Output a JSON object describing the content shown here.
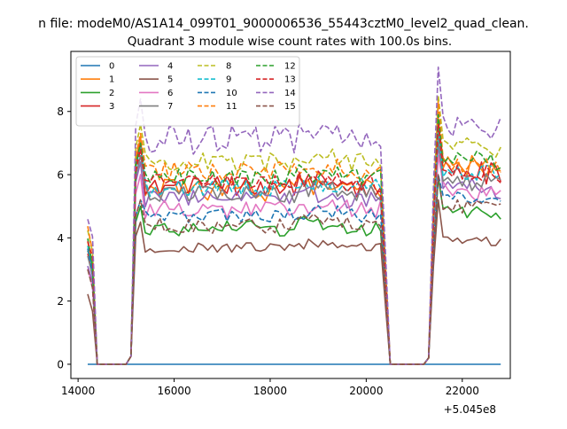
{
  "chart_data": {
    "type": "line",
    "suptitle": "n file: modeM0/AS1A14_099T01_9000006536_55443cztM0_level2_quad_clean.",
    "title": "Quadrant 3 module wise count rates with 100.0s bins.",
    "xlabel": "",
    "ylabel": "",
    "offset_label": "+5.045e8",
    "xlim": [
      13850,
      23000
    ],
    "ylim": [
      -0.45,
      9.9
    ],
    "x_ticks": [
      14000,
      16000,
      18000,
      20000,
      22000
    ],
    "x_tick_labels": [
      "14000",
      "16000",
      "18000",
      "20000",
      "22000"
    ],
    "y_ticks": [
      0,
      2,
      4,
      6,
      8
    ],
    "y_tick_labels": [
      "0",
      "2",
      "4",
      "6",
      "8"
    ],
    "grid": false,
    "legend": {
      "placement": "top-left",
      "ncol": 4
    },
    "segments": [
      {
        "x_start": 14200,
        "x_end": 14300,
        "x_step": 100,
        "zero_after": [
          14400,
          14500,
          14600,
          14700,
          14800,
          14900,
          15000
        ]
      },
      {
        "x_start": 15100,
        "x_end": 20400,
        "x_step": 100,
        "zero_after": [
          20500,
          20600,
          20700,
          20800,
          20900,
          21000,
          21100,
          21200
        ]
      },
      {
        "x_start": 21300,
        "x_end": 22800,
        "x_step": 100,
        "zero_after": []
      }
    ],
    "series": [
      {
        "name": "0",
        "color": "#1f77b4",
        "dash": "solid",
        "profile": "zero",
        "seed": 0
      },
      {
        "name": "1",
        "color": "#ff7f0e",
        "dash": "solid",
        "pre": 3.9,
        "level": 5.5,
        "post": 6.2,
        "peak": 7.2,
        "peak2": 7.8,
        "noise": 0.35,
        "seed": 1
      },
      {
        "name": "2",
        "color": "#2ca02c",
        "dash": "solid",
        "pre": 3.6,
        "level": 4.3,
        "post": 4.7,
        "peak": 5.0,
        "peak2": 5.9,
        "noise": 0.25,
        "seed": 2
      },
      {
        "name": "3",
        "color": "#d62728",
        "dash": "solid",
        "pre": 3.5,
        "level": 5.6,
        "post": 6.0,
        "peak": 7.0,
        "peak2": 7.6,
        "noise": 0.35,
        "seed": 3
      },
      {
        "name": "4",
        "color": "#9467bd",
        "dash": "solid",
        "pre": 3.1,
        "level": 5.2,
        "post": 5.5,
        "peak": 6.4,
        "peak2": 7.0,
        "noise": 0.3,
        "seed": 4
      },
      {
        "name": "5",
        "color": "#8c564b",
        "dash": "solid",
        "pre": 2.2,
        "level": 3.7,
        "post": 3.8,
        "peak": 4.5,
        "peak2": 5.2,
        "noise": 0.18,
        "seed": 5
      },
      {
        "name": "6",
        "color": "#e377c2",
        "dash": "solid",
        "pre": 3.0,
        "level": 4.9,
        "post": 5.3,
        "peak": 6.0,
        "peak2": 6.6,
        "noise": 0.3,
        "seed": 6
      },
      {
        "name": "7",
        "color": "#7f7f7f",
        "dash": "solid",
        "pre": 3.4,
        "level": 5.4,
        "post": 5.7,
        "peak": 6.6,
        "peak2": 7.2,
        "noise": 0.3,
        "seed": 7
      },
      {
        "name": "8",
        "color": "#bcbd22",
        "dash": "dashed",
        "pre": 4.2,
        "level": 6.4,
        "post": 6.8,
        "peak": 7.6,
        "peak2": 8.5,
        "noise": 0.3,
        "seed": 8
      },
      {
        "name": "9",
        "color": "#17becf",
        "dash": "dashed",
        "pre": 3.7,
        "level": 5.6,
        "post": 6.0,
        "peak": 6.9,
        "peak2": 7.5,
        "noise": 0.28,
        "seed": 9
      },
      {
        "name": "10",
        "color": "#1f77b4",
        "dash": "dashed",
        "pre": 3.6,
        "level": 4.7,
        "post": 5.2,
        "peak": 5.2,
        "peak2": 6.0,
        "noise": 0.22,
        "seed": 10
      },
      {
        "name": "11",
        "color": "#ff7f0e",
        "dash": "dashed",
        "pre": 4.3,
        "level": 6.1,
        "post": 6.2,
        "peak": 7.3,
        "peak2": 8.3,
        "noise": 0.3,
        "seed": 11
      },
      {
        "name": "12",
        "color": "#2ca02c",
        "dash": "dashed",
        "pre": 3.9,
        "level": 5.9,
        "post": 6.4,
        "peak": 7.0,
        "peak2": 7.9,
        "noise": 0.28,
        "seed": 12
      },
      {
        "name": "13",
        "color": "#d62728",
        "dash": "dashed",
        "pre": 3.8,
        "level": 5.7,
        "post": 6.0,
        "peak": 6.8,
        "peak2": 7.6,
        "noise": 0.3,
        "seed": 13
      },
      {
        "name": "14",
        "color": "#9467bd",
        "dash": "dashed",
        "pre": 4.5,
        "level": 7.1,
        "post": 7.4,
        "peak": 8.4,
        "peak2": 9.4,
        "noise": 0.45,
        "seed": 14
      },
      {
        "name": "15",
        "color": "#8c564b",
        "dash": "dashed",
        "pre": 2.9,
        "level": 4.4,
        "post": 4.9,
        "peak": 5.2,
        "peak2": 6.0,
        "noise": 0.25,
        "seed": 15
      }
    ]
  }
}
